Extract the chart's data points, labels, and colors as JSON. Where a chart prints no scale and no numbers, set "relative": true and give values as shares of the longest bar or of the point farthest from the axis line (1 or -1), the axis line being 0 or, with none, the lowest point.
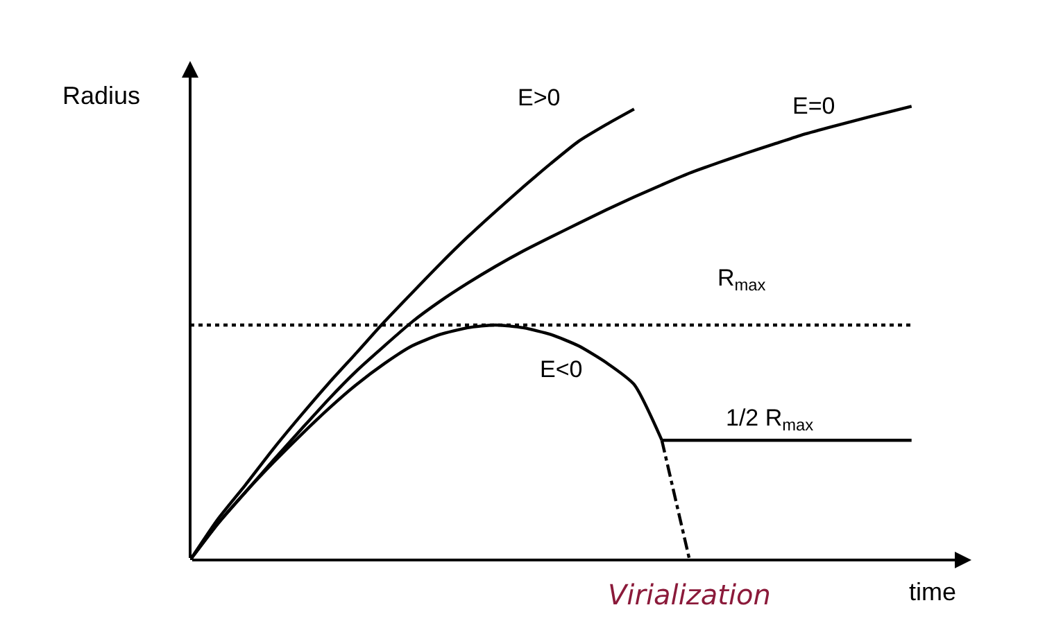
{
  "chart_data": {
    "type": "line",
    "relative": true,
    "xlabel": "time",
    "ylabel": "Radius",
    "legend": false,
    "marker": "none",
    "categories": [
      null,
      null,
      null,
      null,
      null,
      null,
      null,
      null,
      null,
      null,
      null,
      null,
      null,
      null,
      null,
      null,
      null,
      null,
      null,
      null,
      null,
      null,
      null,
      null,
      null,
      null,
      null
    ],
    "series": [
      {
        "name": "E>0",
        "color": "#000000",
        "values": [
          0,
          0.09,
          0.166,
          0.245,
          0.319,
          0.39,
          0.457,
          0.525,
          0.589,
          0.652,
          0.712,
          0.768,
          0.822,
          0.874,
          0.923,
          0.96,
          0.994,
          null,
          null,
          null,
          null,
          null,
          null,
          null,
          null,
          null,
          null
        ]
      },
      {
        "name": "E=0",
        "color": "#000000",
        "values": [
          0,
          0.08,
          0.15,
          0.22,
          0.288,
          0.355,
          0.417,
          0.472,
          0.525,
          0.57,
          0.61,
          0.647,
          0.681,
          0.712,
          0.742,
          0.772,
          0.8,
          0.827,
          0.853,
          0.875,
          0.896,
          0.916,
          0.936,
          0.953,
          0.969,
          0.985,
          1.0
        ]
      },
      {
        "name": "E<0",
        "color": "#000000",
        "values": [
          0,
          0.08,
          0.15,
          0.215,
          0.276,
          0.334,
          0.387,
          0.433,
          0.472,
          0.497,
          0.512,
          0.518,
          0.512,
          0.497,
          0.472,
          0.435,
          0.387,
          0.264,
          null,
          null,
          null,
          null,
          null,
          null,
          null,
          null,
          null
        ]
      },
      {
        "color": "#000000",
        "line_style": "dashed",
        "values": [
          null,
          null,
          null,
          null,
          null,
          null,
          null,
          null,
          null,
          null,
          null,
          null,
          null,
          null,
          null,
          null,
          null,
          0.264,
          0,
          null,
          null,
          null,
          null,
          null,
          null,
          null,
          null
        ]
      },
      {
        "color": "#000000",
        "values": [
          null,
          null,
          null,
          null,
          null,
          null,
          null,
          null,
          null,
          null,
          null,
          null,
          null,
          null,
          null,
          null,
          null,
          0.264,
          0.264,
          0.264,
          0.264,
          0.264,
          0.264,
          0.264,
          0.264,
          0.264,
          0.264
        ]
      }
    ],
    "ref_lines": [
      {
        "axis": "y",
        "value": 0.518,
        "label": "R$_{max}$",
        "color": "#000000",
        "line_style": "dotted"
      }
    ],
    "annotations": [
      "1/2 R$_{max}$",
      "Virialization"
    ]
  }
}
